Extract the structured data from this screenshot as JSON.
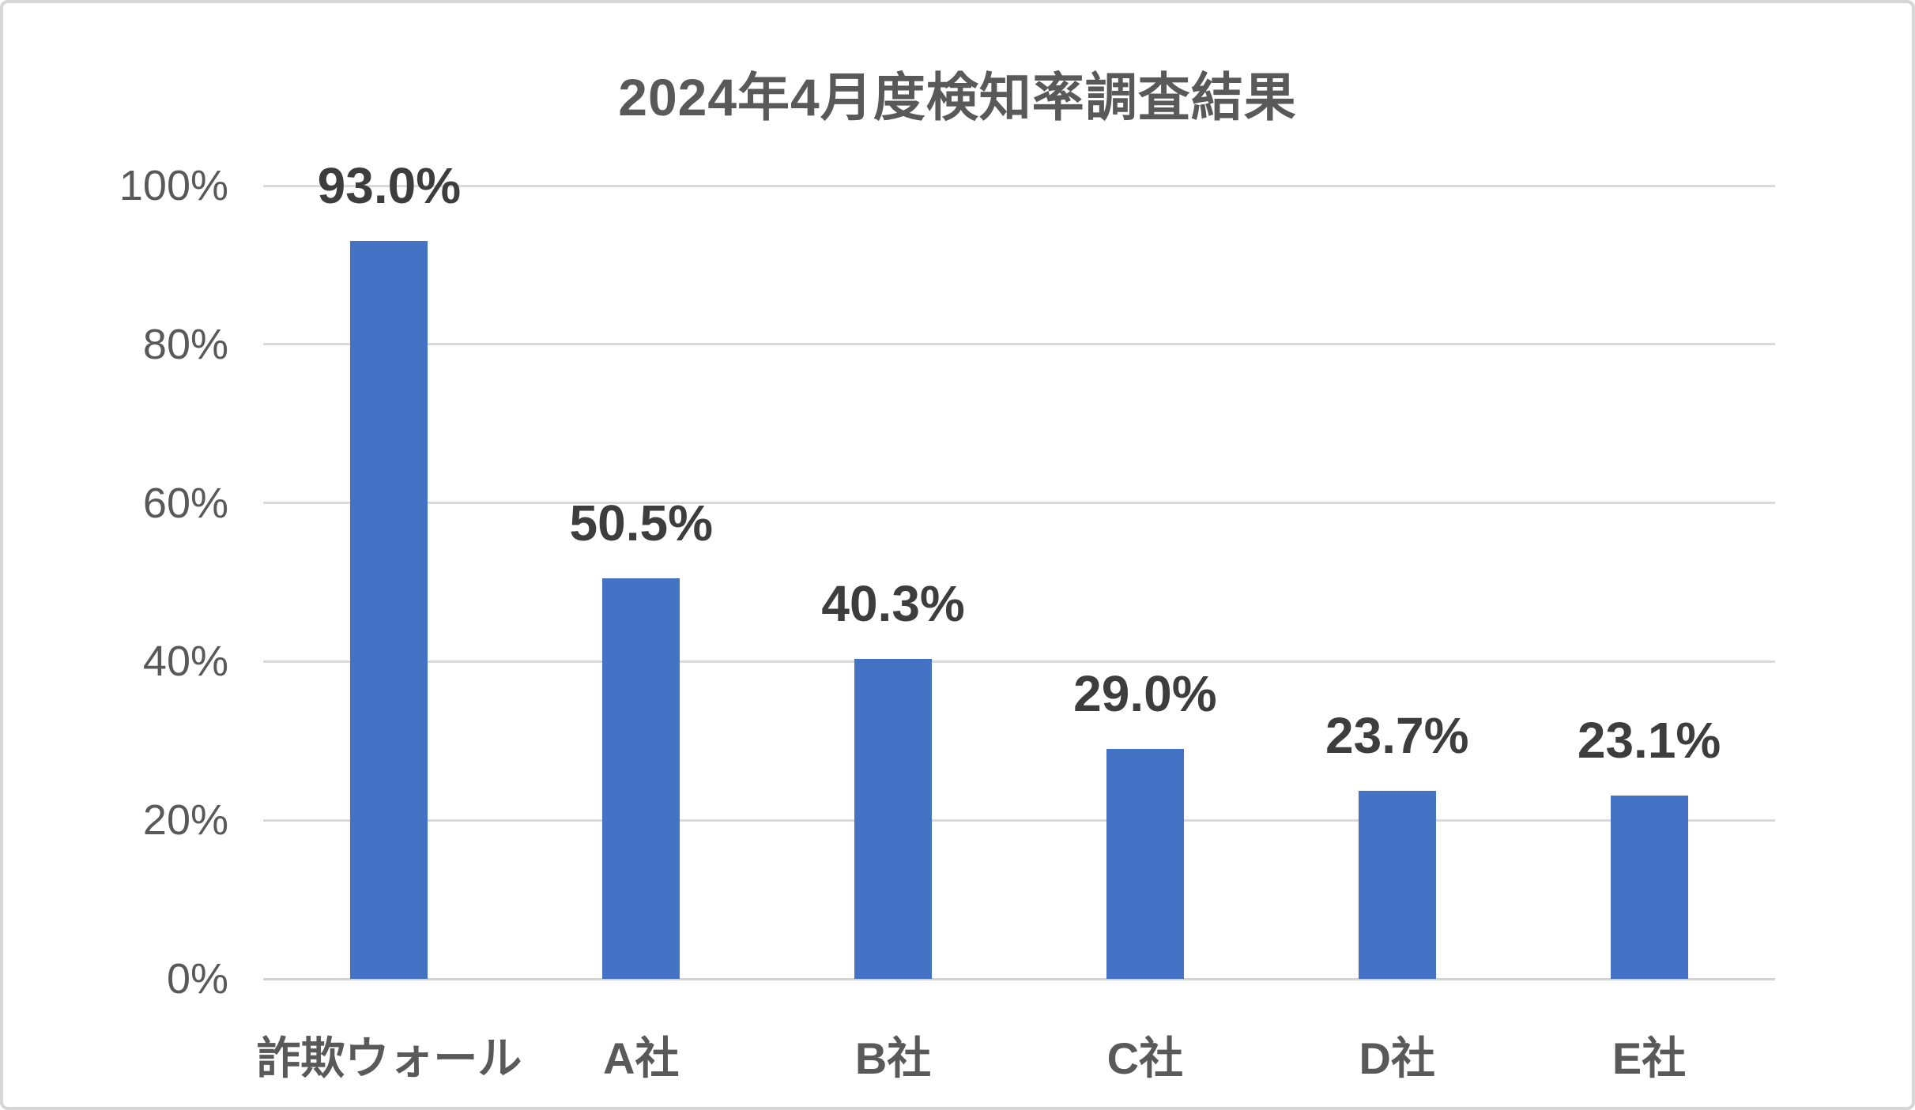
{
  "chart": {
    "title": "2024年4月度検知率調査結果"
  },
  "chart_data": {
    "type": "bar",
    "title": "2024年4月度検知率調査結果",
    "categories": [
      "詐欺ウォール",
      "A社",
      "B社",
      "C社",
      "D社",
      "E社"
    ],
    "values": [
      93.0,
      50.5,
      40.3,
      29.0,
      23.7,
      23.1
    ],
    "data_labels": [
      "93.0%",
      "50.5%",
      "40.3%",
      "29.0%",
      "23.7%",
      "23.1%"
    ],
    "xlabel": "",
    "ylabel": "",
    "ylim": [
      0,
      100
    ],
    "y_ticks": [
      0,
      20,
      40,
      60,
      80,
      100
    ],
    "y_tick_labels": [
      "0%",
      "20%",
      "40%",
      "60%",
      "80%",
      "100%"
    ],
    "grid": true,
    "legend": "none",
    "bar_color": "#4472C4"
  },
  "colors": {
    "bar": "#4472C4",
    "gridline": "#dadada",
    "axis_text": "#595959",
    "data_label_text": "#3d3d3d",
    "title_text": "#595959",
    "border": "#d6d6d6",
    "background": "#ffffff"
  }
}
